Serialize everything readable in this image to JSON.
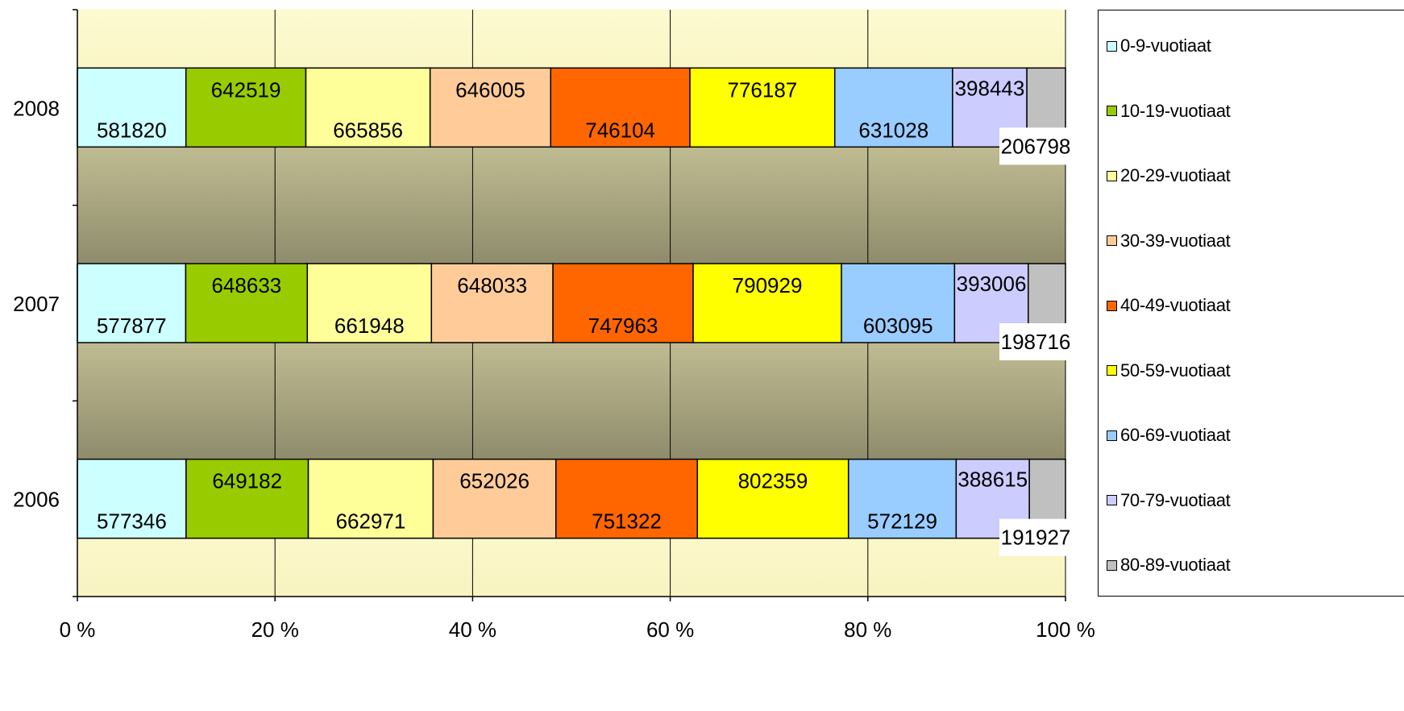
{
  "chart_data": {
    "type": "bar",
    "orientation": "horizontal",
    "stacked": "percent",
    "categories": [
      "2006",
      "2007",
      "2008"
    ],
    "series": [
      {
        "name": "0-9-vuotiaat",
        "color": "#ccffff",
        "values": [
          577346,
          577877,
          581820
        ]
      },
      {
        "name": "10-19-vuotiaat",
        "color": "#99cc00",
        "values": [
          649182,
          648633,
          642519
        ]
      },
      {
        "name": "20-29-vuotiaat",
        "color": "#ffff99",
        "values": [
          662971,
          661948,
          665856
        ]
      },
      {
        "name": "30-39-vuotiaat",
        "color": "#ffcc99",
        "values": [
          652026,
          648033,
          646005
        ]
      },
      {
        "name": "40-49-vuotiaat",
        "color": "#ff6600",
        "values": [
          751322,
          747963,
          746104
        ]
      },
      {
        "name": "50-59-vuotiaat",
        "color": "#ffff00",
        "values": [
          802359,
          790929,
          776187
        ]
      },
      {
        "name": "60-69-vuotiaat",
        "color": "#99ccff",
        "values": [
          572129,
          603095,
          631028
        ]
      },
      {
        "name": "70-79-vuotiaat",
        "color": "#ccccff",
        "values": [
          388615,
          393006,
          398443
        ]
      },
      {
        "name": "80-89-vuotiaat",
        "color": "#c0c0c0",
        "values": [
          191927,
          198716,
          206798
        ]
      }
    ],
    "xlim": [
      0,
      100
    ],
    "x_ticks": [
      "0 %",
      "20 %",
      "40 %",
      "60 %",
      "80 %",
      "100 %"
    ],
    "title": "",
    "xlabel": "",
    "ylabel": "",
    "grid": true,
    "legend_position": "right"
  }
}
